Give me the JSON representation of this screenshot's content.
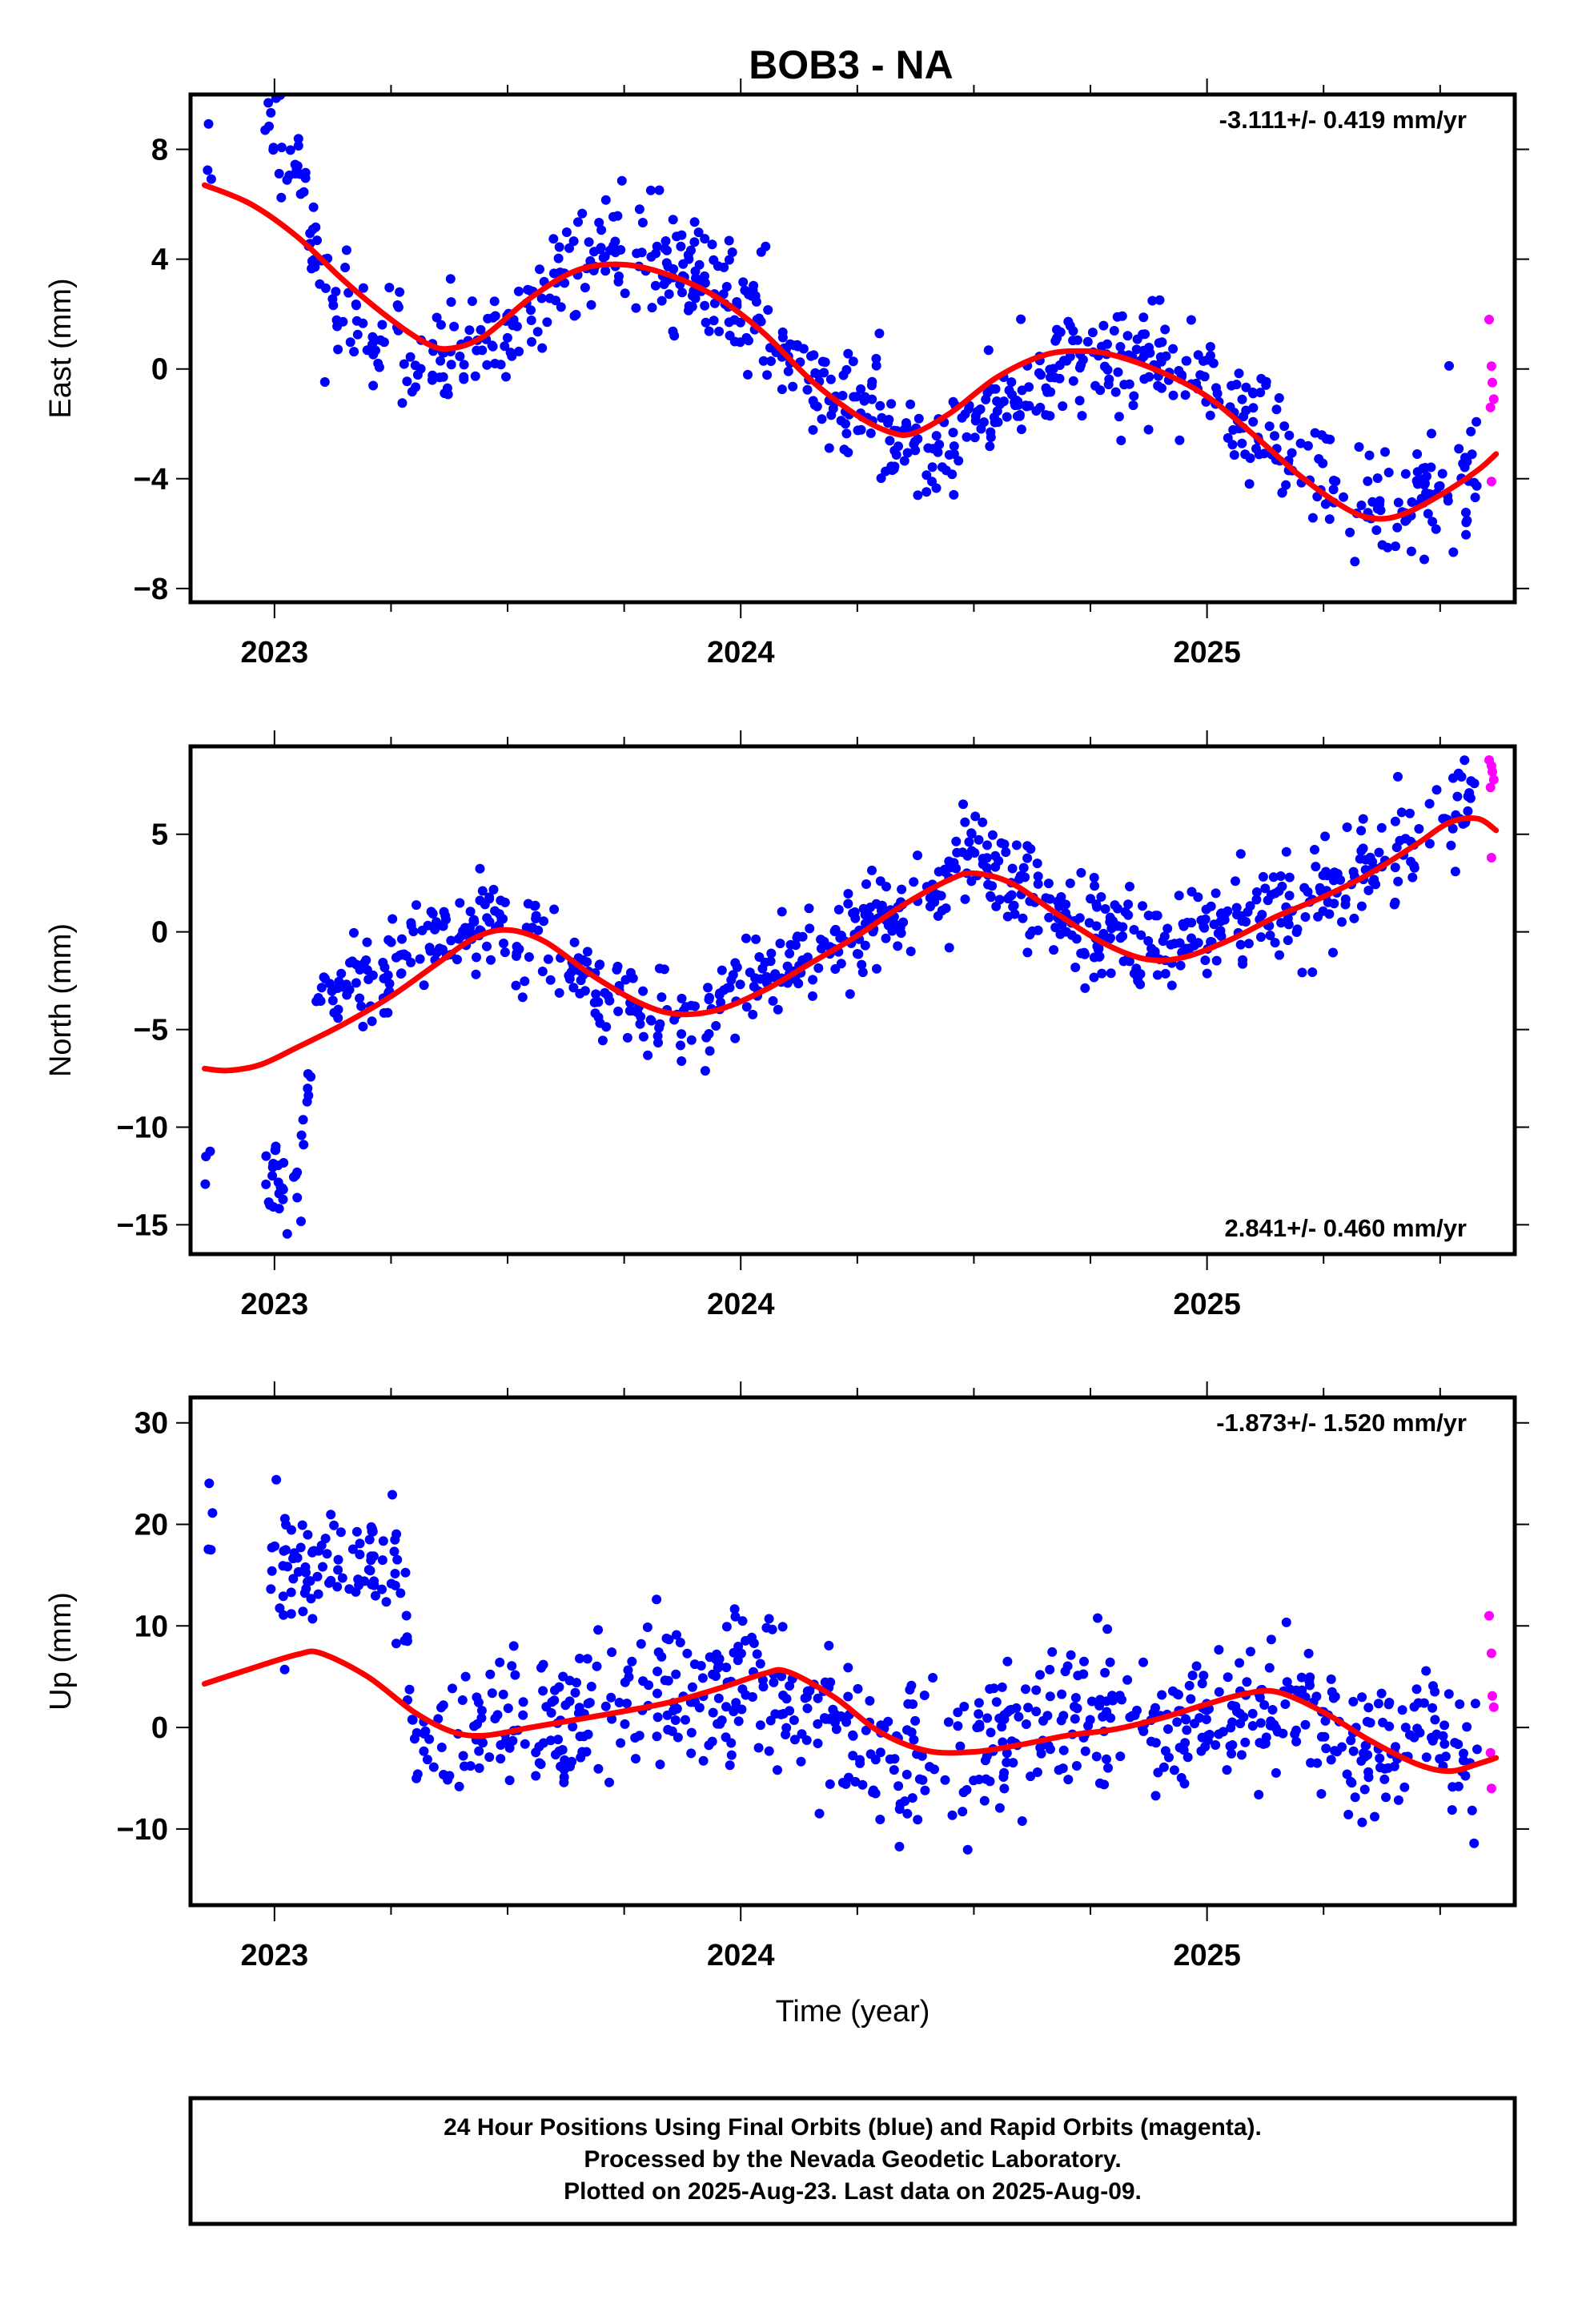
{
  "title": "BOB3 - NA",
  "colors": {
    "final": "#0000ff",
    "rapid": "#ff00ff",
    "fit": "#ff0000"
  },
  "chart_data": [
    {
      "type": "scatter",
      "name": "east",
      "ylabel": "East (mm)",
      "rate_label": "-3.111+/- 0.419 mm/yr",
      "rate_position": "top-right",
      "xlim": [
        2022.82,
        2025.66
      ],
      "ylim": [
        -8.5,
        10.0
      ],
      "yticks": [
        -8,
        -4,
        0,
        4,
        8
      ],
      "xticks": [
        2023,
        2024,
        2025
      ],
      "fit_x": [
        2022.85,
        2022.95,
        2023.05,
        2023.15,
        2023.25,
        2023.33,
        2023.38,
        2023.45,
        2023.55,
        2023.65,
        2023.75,
        2023.85,
        2023.95,
        2024.05,
        2024.15,
        2024.25,
        2024.32,
        2024.37,
        2024.45,
        2024.55,
        2024.65,
        2024.73,
        2024.8,
        2024.9,
        2025.0,
        2025.1,
        2025.2,
        2025.3,
        2025.36,
        2025.42,
        2025.5,
        2025.58,
        2025.62
      ],
      "fit_y": [
        6.7,
        6.0,
        4.8,
        3.2,
        1.8,
        0.9,
        0.75,
        1.2,
        2.6,
        3.6,
        3.8,
        3.4,
        2.6,
        1.3,
        -0.4,
        -1.7,
        -2.3,
        -2.35,
        -1.6,
        -0.3,
        0.5,
        0.65,
        0.5,
        -0.1,
        -1.0,
        -2.4,
        -3.9,
        -5.1,
        -5.45,
        -5.3,
        -4.6,
        -3.7,
        -3.1
      ],
      "control_x": [
        2022.85,
        2022.95,
        2023.0,
        2023.05,
        2023.1,
        2023.2,
        2023.3,
        2023.4,
        2023.5,
        2023.6,
        2023.7,
        2023.8,
        2023.9,
        2024.0,
        2024.1,
        2024.2,
        2024.3,
        2024.4,
        2024.5,
        2024.6,
        2024.7,
        2024.8,
        2024.9,
        2025.0,
        2025.1,
        2025.2,
        2025.3,
        2025.4,
        2025.5,
        2025.58
      ],
      "control_y": [
        7.5,
        8.0,
        8.5,
        7.0,
        3.0,
        1.2,
        0.5,
        0.4,
        1.5,
        3.2,
        4.5,
        4.2,
        3.5,
        2.2,
        0.5,
        -1.0,
        -1.8,
        -3.0,
        -2.0,
        -0.8,
        0.3,
        0.5,
        0.2,
        -0.8,
        -2.0,
        -3.5,
        -4.5,
        -5.5,
        -4.0,
        -3.2
      ],
      "noise": 1.05,
      "x_start": 2022.85,
      "x_end": 2025.58,
      "gap": [
        2022.87,
        2022.98
      ],
      "n_points": 820,
      "seed": 11,
      "rapid_x": [
        2025.605,
        2025.61,
        2025.612,
        2025.615,
        2025.608,
        2025.61
      ],
      "rapid_y": [
        1.8,
        0.1,
        -0.5,
        -1.1,
        -1.4,
        -4.1
      ]
    },
    {
      "type": "scatter",
      "name": "north",
      "ylabel": "North (mm)",
      "rate_label": "2.841+/- 0.460 mm/yr",
      "rate_position": "bottom-right",
      "xlim": [
        2022.82,
        2025.66
      ],
      "ylim": [
        -16.5,
        9.5
      ],
      "yticks": [
        -15,
        -10,
        -5,
        0,
        5
      ],
      "xticks": [
        2023,
        2024,
        2025
      ],
      "fit_x": [
        2022.85,
        2022.9,
        2022.97,
        2023.05,
        2023.15,
        2023.25,
        2023.35,
        2023.43,
        2023.5,
        2023.58,
        2023.68,
        2023.78,
        2023.86,
        2023.95,
        2024.05,
        2024.15,
        2024.25,
        2024.35,
        2024.45,
        2024.5,
        2024.58,
        2024.68,
        2024.78,
        2024.87,
        2024.95,
        2025.05,
        2025.15,
        2025.25,
        2025.35,
        2025.45,
        2025.52,
        2025.58,
        2025.62
      ],
      "fit_y": [
        -7.0,
        -7.1,
        -6.8,
        -5.9,
        -4.7,
        -3.3,
        -1.6,
        -0.3,
        0.1,
        -0.5,
        -2.2,
        -3.6,
        -4.2,
        -4.0,
        -3.0,
        -1.6,
        -0.2,
        1.4,
        2.7,
        3.0,
        2.5,
        0.9,
        -0.6,
        -1.4,
        -1.3,
        -0.4,
        0.8,
        1.8,
        3.0,
        4.5,
        5.6,
        5.8,
        5.2
      ],
      "control_x": [
        2022.85,
        2023.0,
        2023.05,
        2023.1,
        2023.2,
        2023.3,
        2023.4,
        2023.5,
        2023.6,
        2023.7,
        2023.8,
        2023.9,
        2024.0,
        2024.1,
        2024.2,
        2024.3,
        2024.4,
        2024.5,
        2024.6,
        2024.7,
        2024.8,
        2024.9,
        2025.0,
        2025.1,
        2025.2,
        2025.3,
        2025.4,
        2025.5,
        2025.58
      ],
      "control_y": [
        -12.3,
        -12.5,
        -13.0,
        -2.8,
        -2.5,
        -1.5,
        0.5,
        0.5,
        -0.5,
        -3.0,
        -4.0,
        -4.5,
        -3.0,
        -1.5,
        -1.0,
        0.5,
        1.5,
        4.0,
        2.0,
        0.0,
        0.0,
        -0.8,
        0.2,
        1.2,
        1.2,
        2.5,
        4.0,
        5.5,
        6.2
      ],
      "noise": 1.2,
      "x_start": 2022.85,
      "x_end": 2025.58,
      "gap": [
        2022.87,
        2022.98
      ],
      "n_points": 820,
      "seed": 23,
      "rapid_x": [
        2025.605,
        2025.61,
        2025.612,
        2025.615,
        2025.608,
        2025.61
      ],
      "rapid_y": [
        8.8,
        8.5,
        8.2,
        7.8,
        7.4,
        3.8
      ]
    },
    {
      "type": "scatter",
      "name": "up",
      "ylabel": "Up (mm)",
      "rate_label": "-1.873+/- 1.520 mm/yr",
      "rate_position": "top-right",
      "xlim": [
        2022.82,
        2025.66
      ],
      "ylim": [
        -17.5,
        32.5
      ],
      "yticks": [
        -10,
        0,
        10,
        20,
        30
      ],
      "xticks": [
        2023,
        2024,
        2025
      ],
      "xlabel": "Time (year)",
      "fit_x": [
        2022.85,
        2022.95,
        2023.05,
        2023.1,
        2023.2,
        2023.3,
        2023.38,
        2023.45,
        2023.55,
        2023.65,
        2023.75,
        2023.85,
        2023.95,
        2024.05,
        2024.1,
        2024.2,
        2024.3,
        2024.4,
        2024.5,
        2024.6,
        2024.7,
        2024.8,
        2024.9,
        2025.0,
        2025.08,
        2025.15,
        2025.25,
        2025.35,
        2025.45,
        2025.52,
        2025.58,
        2025.62
      ],
      "fit_y": [
        4.3,
        5.8,
        7.2,
        7.3,
        5.0,
        1.5,
        -0.4,
        -0.8,
        0.0,
        0.8,
        1.6,
        2.5,
        3.8,
        5.3,
        5.5,
        3.0,
        -0.5,
        -2.3,
        -2.4,
        -1.7,
        -0.8,
        -0.2,
        0.9,
        2.3,
        3.3,
        3.5,
        1.5,
        -1.3,
        -3.6,
        -4.3,
        -3.6,
        -3.0
      ],
      "control_x": [
        2022.85,
        2023.0,
        2023.1,
        2023.2,
        2023.28,
        2023.3,
        2023.4,
        2023.5,
        2023.6,
        2023.7,
        2023.8,
        2023.9,
        2024.0,
        2024.1,
        2024.2,
        2024.3,
        2024.4,
        2024.5,
        2024.6,
        2024.7,
        2024.8,
        2024.9,
        2025.0,
        2025.1,
        2025.2,
        2025.3,
        2025.4,
        2025.5,
        2025.58
      ],
      "control_y": [
        20.0,
        14.0,
        17.0,
        18.0,
        14.0,
        -3.0,
        0.0,
        0.5,
        1.0,
        2.0,
        3.5,
        4.0,
        4.5,
        3.0,
        -1.0,
        -4.0,
        -2.5,
        -2.0,
        -1.0,
        1.0,
        1.5,
        0.0,
        0.0,
        1.5,
        2.0,
        -1.5,
        -3.0,
        -2.0,
        -3.5
      ],
      "noise": 3.4,
      "x_start": 2022.85,
      "x_end": 2025.58,
      "gap": [
        2022.87,
        2022.98
      ],
      "n_points": 820,
      "seed": 37,
      "rapid_x": [
        2025.605,
        2025.61,
        2025.612,
        2025.615,
        2025.608,
        2025.61
      ],
      "rapid_y": [
        11.0,
        7.3,
        3.1,
        2.0,
        -2.5,
        -6.0
      ]
    }
  ],
  "caption": {
    "lines": [
      "24 Hour Positions Using Final Orbits (blue) and Rapid Orbits (magenta).",
      "Processed by the Nevada Geodetic Laboratory.",
      "Plotted on 2025-Aug-23. Last data on 2025-Aug-09."
    ]
  }
}
